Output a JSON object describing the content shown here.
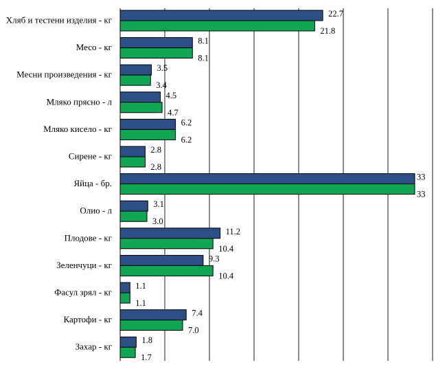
{
  "chart_data": {
    "type": "bar",
    "orientation": "horizontal",
    "title": "",
    "xlabel": "",
    "ylabel": "",
    "xlim": [
      0,
      35
    ],
    "grid": "vertical",
    "legend": "none",
    "categories": [
      "Хляб и тестени изделия - кг",
      "Месо - кг",
      "Месни произведения  - кг",
      "Мляко прясно - л",
      "Мляко кисело - кг",
      "Сирене - кг",
      "Яйца - бр.",
      "Олио - л",
      "Плодове - кг",
      "Зеленчуци - кг",
      "Фасул зрял - кг",
      "Картофи - кг",
      "Захар - кг"
    ],
    "series": [
      {
        "color": "#2e4f86",
        "values": [
          22.7,
          8.1,
          3.5,
          4.5,
          6.2,
          2.8,
          33,
          3.1,
          11.2,
          9.3,
          1.1,
          7.4,
          1.8
        ],
        "labels": [
          "22.7",
          "8.1",
          "3.5",
          "4.5",
          "6.2",
          "2.8",
          "33",
          "3.1",
          "11.2",
          "9.3",
          "1.1",
          "7.4",
          "1.8"
        ]
      },
      {
        "color": "#11a654",
        "values": [
          21.8,
          8.1,
          3.4,
          4.7,
          6.2,
          2.8,
          33,
          3.0,
          10.4,
          10.4,
          1.1,
          7.0,
          1.7
        ],
        "labels": [
          "21.8",
          "8.1",
          "3.4",
          "4.7",
          "6.2",
          "2.8",
          "33",
          "3.0",
          "10.4",
          "10.4",
          "1.1",
          "7.0",
          "1.7"
        ]
      }
    ]
  }
}
